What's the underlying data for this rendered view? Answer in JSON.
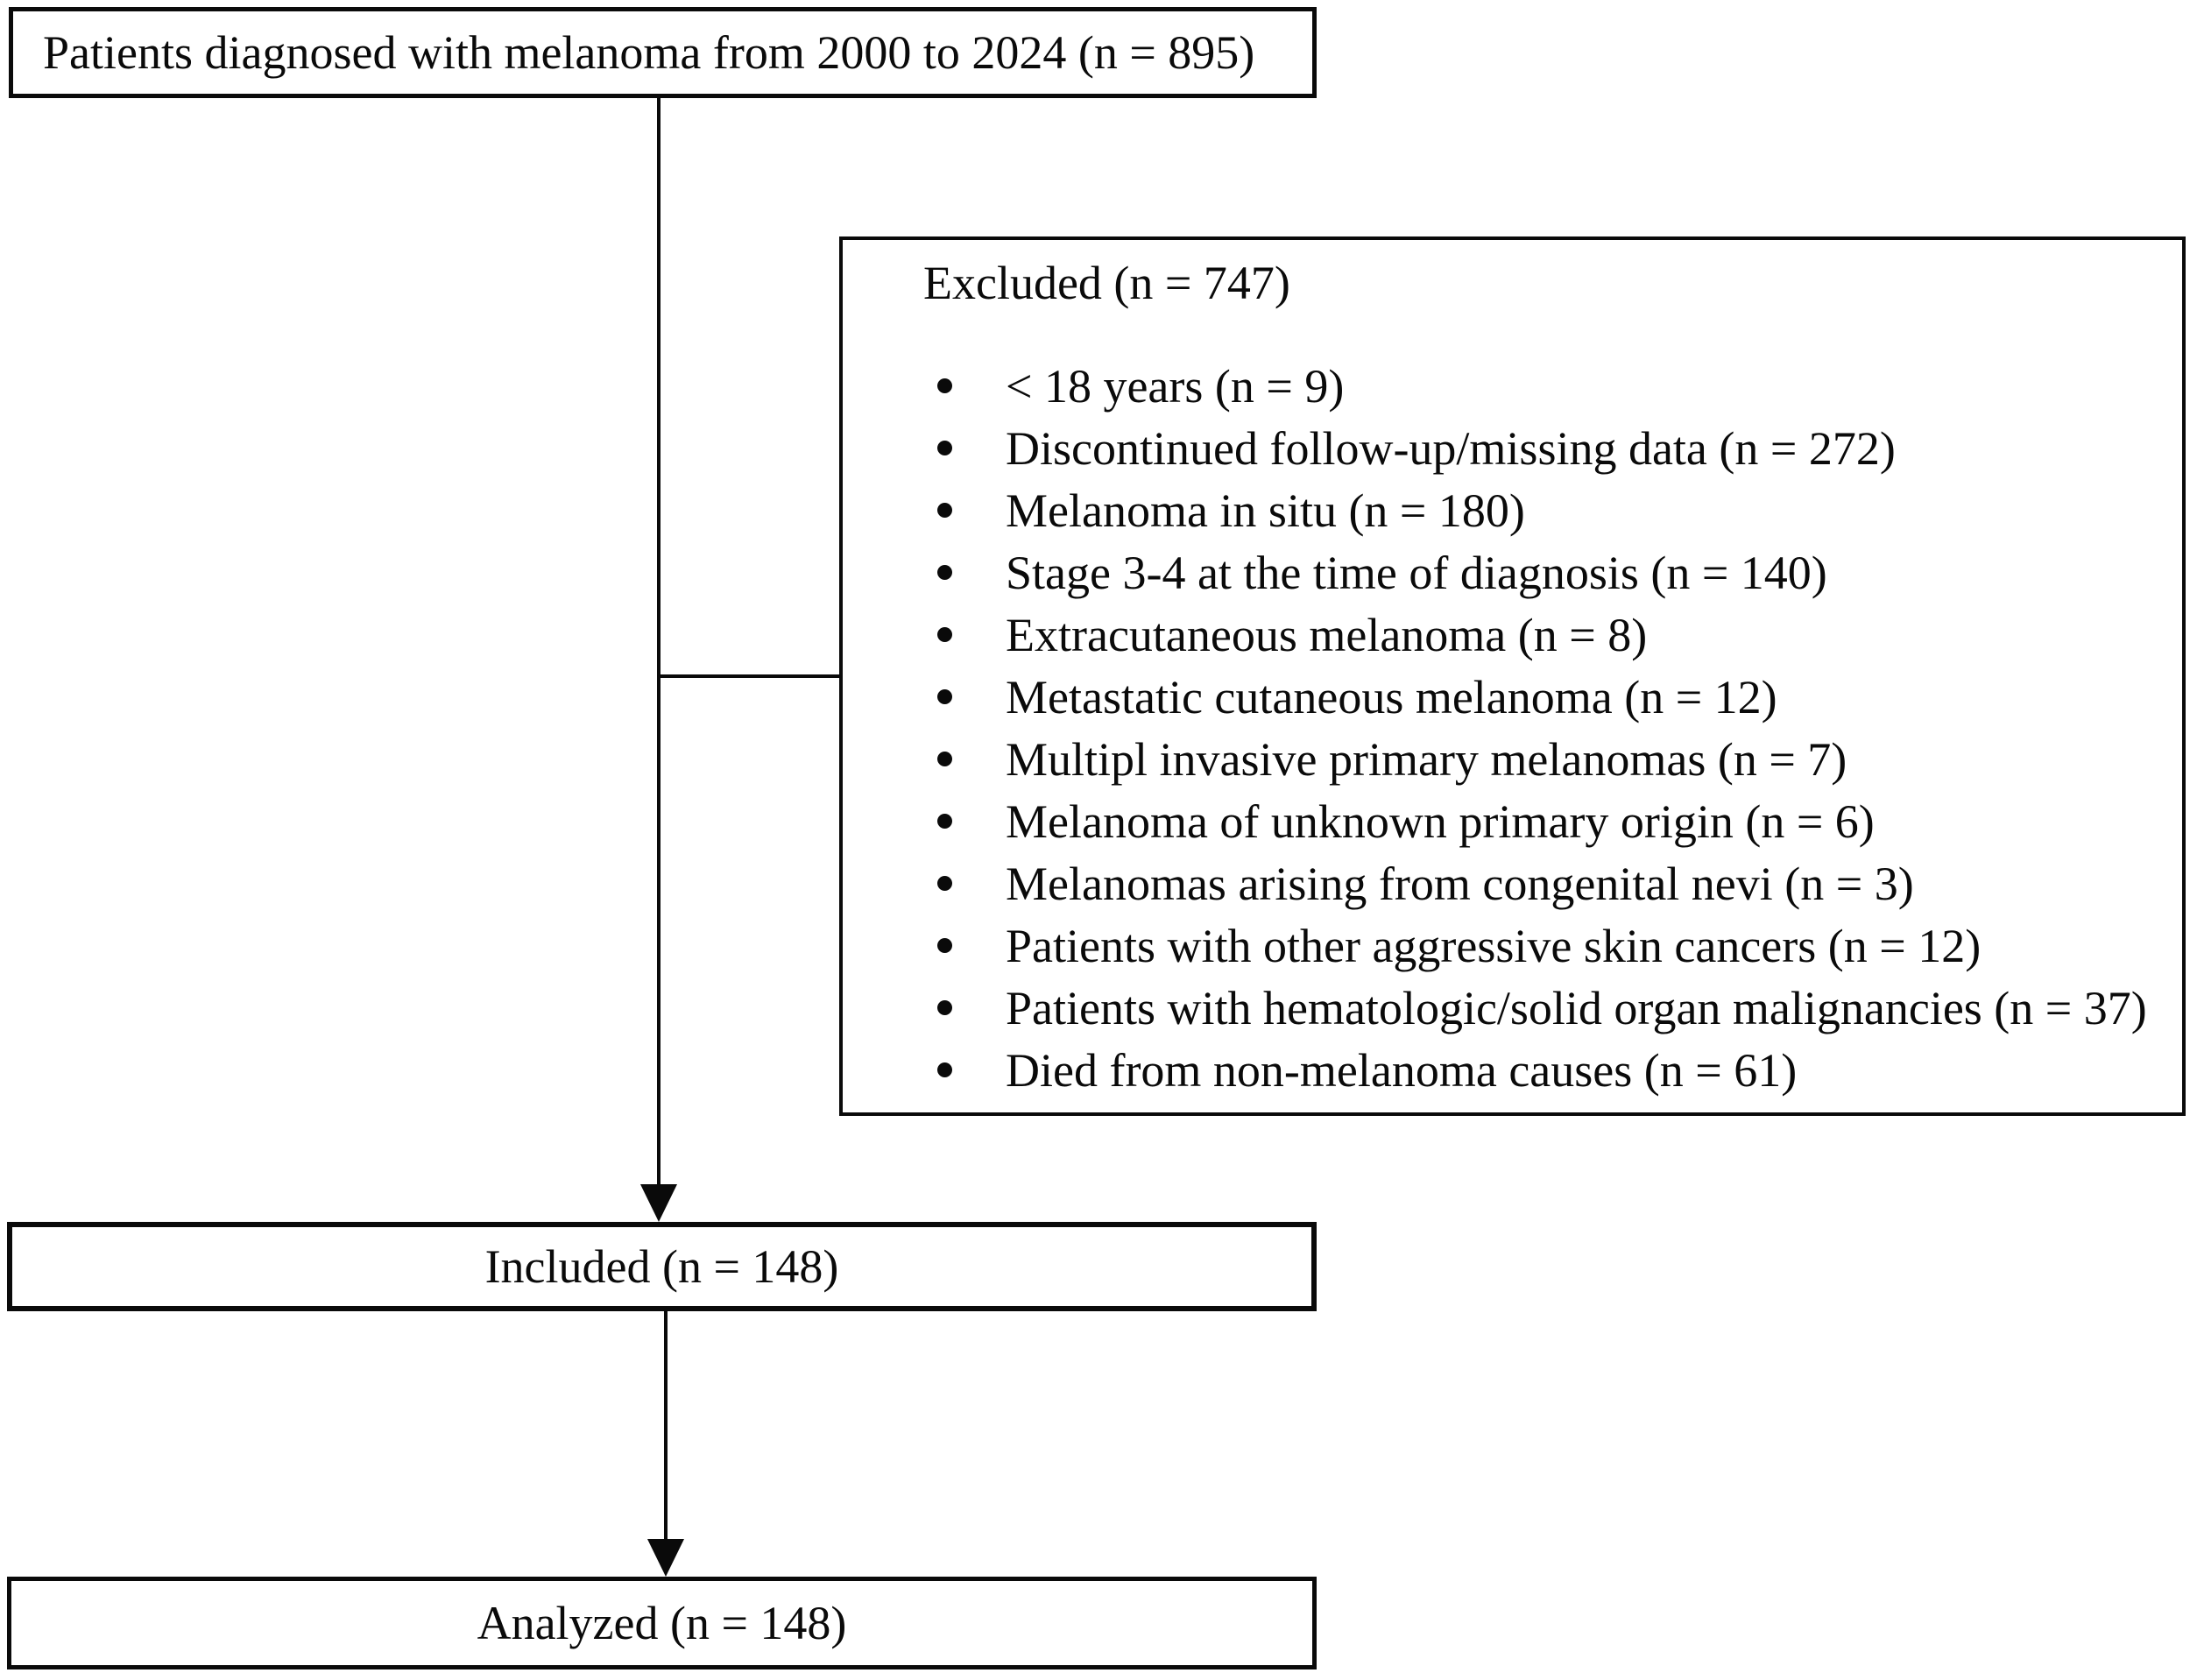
{
  "flowchart": {
    "top_box": {
      "label": "Patients diagnosed with melanoma from 2000 to 2024 (n = 895)"
    },
    "excluded_box": {
      "title": "Excluded (n = 747)",
      "items": [
        "< 18 years (n = 9)",
        "Discontinued follow-up/missing data (n = 272)",
        "Melanoma in situ (n = 180)",
        "Stage 3-4 at the time of diagnosis (n = 140)",
        "Extracutaneous melanoma (n = 8)",
        "Metastatic cutaneous melanoma (n = 12)",
        "Multipl invasive primary melanomas (n = 7)",
        "Melanoma of unknown primary origin (n = 6)",
        "Melanomas arising from congenital nevi (n = 3)",
        "Patients with other aggressive skin cancers (n = 12)",
        "Patients with hematologic/solid organ malignancies (n = 37)",
        "Died from non-melanoma causes (n = 61)"
      ]
    },
    "included_box": {
      "label": "Included (n = 148)"
    },
    "analyzed_box": {
      "label": "Analyzed (n = 148)"
    },
    "colors": {
      "line": "#0a0a0a",
      "text": "#0a0a0a",
      "background": "#ffffff"
    }
  }
}
